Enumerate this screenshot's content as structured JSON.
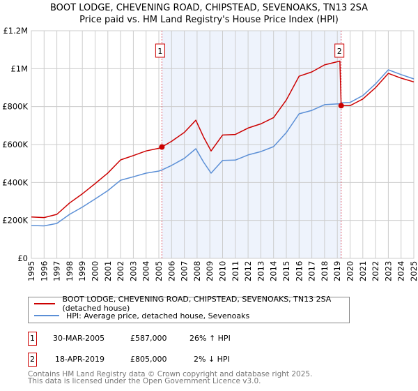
{
  "chart_data": {
    "type": "line",
    "title": "BOOT LODGE, CHEVENING ROAD, CHIPSTEAD, SEVENOAKS, TN13 2SA",
    "subtitle": "Price paid vs. HM Land Registry's House Price Index (HPI)",
    "xlim": [
      1995,
      2025
    ],
    "ylim": [
      0,
      1200000
    ],
    "y_ticks": [
      {
        "v": 0,
        "label": "£0"
      },
      {
        "v": 200000,
        "label": "£200K"
      },
      {
        "v": 400000,
        "label": "£400K"
      },
      {
        "v": 600000,
        "label": "£600K"
      },
      {
        "v": 800000,
        "label": "£800K"
      },
      {
        "v": 1000000,
        "label": "£1M"
      },
      {
        "v": 1200000,
        "label": "£1.2M"
      }
    ],
    "x_ticks": [
      "1995",
      "1996",
      "1997",
      "1998",
      "1999",
      "2000",
      "2001",
      "2002",
      "2003",
      "2004",
      "2005",
      "2006",
      "2007",
      "2008",
      "2009",
      "2010",
      "2011",
      "2012",
      "2013",
      "2014",
      "2015",
      "2016",
      "2017",
      "2018",
      "2019",
      "2020",
      "2021",
      "2022",
      "2023",
      "2024",
      "2025"
    ],
    "grid": true,
    "series": [
      {
        "name": "BOOT LODGE, CHEVENING ROAD, CHIPSTEAD, SEVENOAKS, TN13 2SA (detached house)",
        "color": "#cc0000",
        "x": [
          1995,
          1996,
          1997,
          1998,
          1999,
          2000,
          2001,
          2002,
          2003,
          2004,
          2005,
          2005.24,
          2006,
          2007,
          2007.9,
          2008.5,
          2009.1,
          2010,
          2011,
          2012,
          2013,
          2014,
          2015,
          2016,
          2017,
          2018,
          2019.2,
          2019.3,
          2020,
          2021,
          2022,
          2023,
          2024,
          2025
        ],
        "y": [
          218000,
          215000,
          232000,
          292000,
          340000,
          394000,
          450000,
          519000,
          542000,
          566000,
          580000,
          587000,
          617000,
          664000,
          728000,
          640000,
          566000,
          650000,
          653000,
          687000,
          709000,
          742000,
          835000,
          960000,
          983000,
          1020000,
          1040000,
          805000,
          805000,
          840000,
          900000,
          975000,
          950000,
          930000
        ]
      },
      {
        "name": "HPI: Average price, detached house, Sevenoaks",
        "color": "#5b8fd6",
        "x": [
          1995,
          1996,
          1997,
          1998,
          1999,
          2000,
          2001,
          2002,
          2003,
          2004,
          2005,
          2005.24,
          2006,
          2007,
          2007.9,
          2008.5,
          2009.1,
          2010,
          2011,
          2012,
          2013,
          2014,
          2015,
          2016,
          2017,
          2018,
          2019.2,
          2019.3,
          2020,
          2021,
          2022,
          2023,
          2024,
          2025
        ],
        "y": [
          173000,
          171000,
          184000,
          232000,
          270000,
          313000,
          357000,
          412000,
          430000,
          449000,
          460000,
          466000,
          490000,
          527000,
          578000,
          508000,
          449000,
          516000,
          518000,
          545000,
          563000,
          589000,
          663000,
          762000,
          780000,
          810000,
          815000,
          820000,
          822000,
          858000,
          920000,
          994000,
          969000,
          946000
        ]
      }
    ],
    "sales": [
      {
        "id": "1",
        "x": 2005.24,
        "y": 587000,
        "date": "30-MAR-2005",
        "price": "£587,000",
        "hpi": "26% ↑ HPI"
      },
      {
        "id": "2",
        "x": 2019.3,
        "y": 805000,
        "date": "18-APR-2019",
        "price": "£805,000",
        "hpi": "2% ↓ HPI"
      }
    ],
    "shade_color": "#eef3fc"
  },
  "legend": {
    "red": "BOOT LODGE, CHEVENING ROAD, CHIPSTEAD, SEVENOAKS, TN13 2SA (detached house)",
    "blue": "HPI: Average price, detached house, Sevenoaks"
  },
  "footer": {
    "line1": "Contains HM Land Registry data © Crown copyright and database right 2025.",
    "line2": "This data is licensed under the Open Government Licence v3.0."
  }
}
